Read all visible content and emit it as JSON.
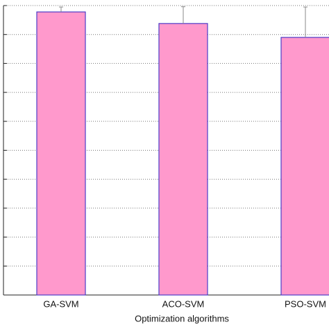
{
  "chart_data": {
    "type": "bar",
    "x_label": "Optimization algorithms",
    "categories": [
      "GA-SVM",
      "ACO-SVM",
      "PSO-SVM"
    ],
    "values": [
      9.78,
      9.38,
      8.9
    ],
    "errors": [
      0.17,
      0.58,
      1.05
    ],
    "color": "#ff99cc",
    "edge_color": "#4b3cc8",
    "ylim": [
      0,
      10
    ],
    "yticks": [
      0,
      1,
      2,
      3,
      4,
      5,
      6,
      7,
      8,
      9,
      10
    ],
    "grid": true
  }
}
